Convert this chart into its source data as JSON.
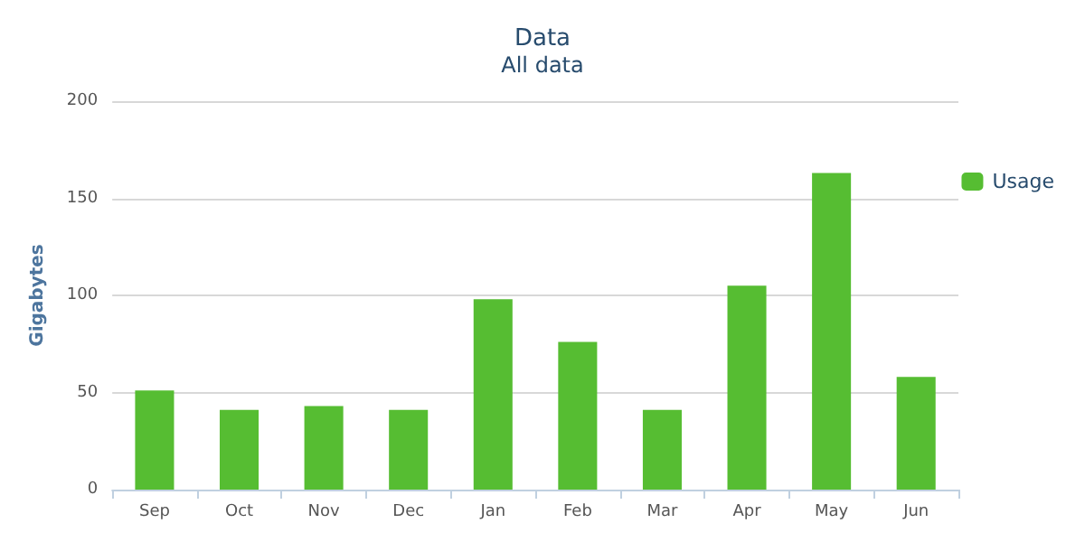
{
  "chart_data": {
    "type": "bar",
    "title": "Data",
    "subtitle": "All data",
    "ylabel": "Gigabytes",
    "categories": [
      "Sep",
      "Oct",
      "Nov",
      "Dec",
      "Jan",
      "Feb",
      "Mar",
      "Apr",
      "May",
      "Jun"
    ],
    "series": [
      {
        "name": "Usage",
        "color": "#56bd32",
        "values": [
          51,
          41,
          43,
          41,
          98,
          76,
          41,
          105,
          163,
          58
        ]
      }
    ],
    "ylim": [
      0,
      200
    ],
    "yticks": [
      0,
      50,
      100,
      150,
      200
    ],
    "grid": "y",
    "legend": "right"
  }
}
